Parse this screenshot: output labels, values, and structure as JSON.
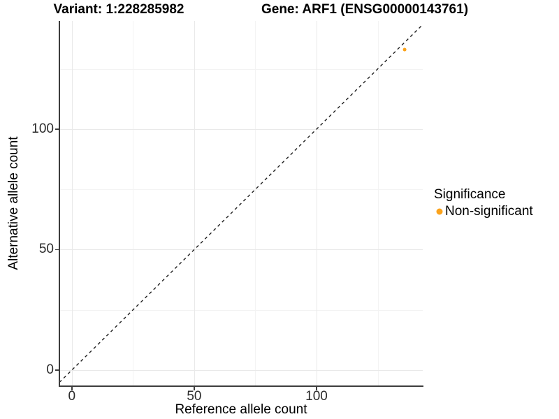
{
  "titles": {
    "left": "Variant: 1:228285982",
    "right": "Gene: ARF1 (ENSG00000143761)"
  },
  "chart_data": {
    "type": "scatter",
    "xlabel": "Reference allele count",
    "ylabel": "Alternative allele count",
    "xlim": [
      -5.1,
      143.4
    ],
    "ylim": [
      -6.4,
      144.9
    ],
    "x_major_ticks": [
      0,
      50,
      100
    ],
    "y_major_ticks": [
      0,
      50,
      100
    ],
    "x_minor_ticks": [
      25,
      75,
      125
    ],
    "y_minor_ticks": [
      25,
      75,
      125
    ],
    "grid": true,
    "reference_line": {
      "type": "identity",
      "slope": 1,
      "intercept": 0,
      "style": "dashed",
      "color": "#1f1f1f"
    },
    "series": [
      {
        "name": "Non-significant",
        "color": "#FBA31C",
        "points": [
          {
            "x": 136,
            "y": 133
          }
        ]
      }
    ],
    "legend": {
      "title": "Significance",
      "position": "right",
      "entries": [
        {
          "label": "Non-significant",
          "color": "#FBA31C"
        }
      ]
    }
  }
}
